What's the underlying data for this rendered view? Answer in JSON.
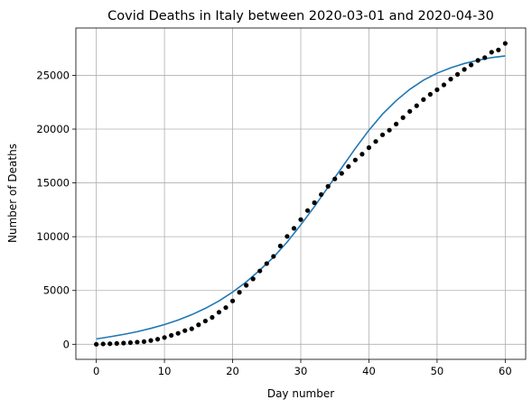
{
  "chart_data": {
    "type": "scatter",
    "title": "Covid Deaths in Italy between 2020-03-01 and 2020-04-30",
    "xlabel": "Day number",
    "ylabel": "Number of Deaths",
    "xlim": [
      -3,
      63
    ],
    "ylim": [
      -1400,
      29400
    ],
    "xticks": [
      0,
      10,
      20,
      30,
      40,
      50,
      60
    ],
    "yticks": [
      0,
      5000,
      10000,
      15000,
      20000,
      25000
    ],
    "grid": true,
    "colors": {
      "points": "#000000",
      "fit": "#1f77b4",
      "grid": "#b0b0b0"
    },
    "series": [
      {
        "kind": "points",
        "x": [
          0,
          1,
          2,
          3,
          4,
          5,
          6,
          7,
          8,
          9,
          10,
          11,
          12,
          13,
          14,
          15,
          16,
          17,
          18,
          19,
          20,
          21,
          22,
          23,
          24,
          25,
          26,
          27,
          28,
          29,
          30,
          31,
          32,
          33,
          34,
          35,
          36,
          37,
          38,
          39,
          40,
          41,
          42,
          43,
          44,
          45,
          46,
          47,
          48,
          49,
          50,
          51,
          52,
          53,
          54,
          55,
          56,
          57,
          58,
          59,
          60
        ],
        "y": [
          0,
          30,
          50,
          80,
          110,
          150,
          200,
          250,
          350,
          470,
          630,
          830,
          1020,
          1270,
          1440,
          1810,
          2160,
          2500,
          2980,
          3410,
          4030,
          4830,
          5480,
          6080,
          6820,
          7500,
          8170,
          9140,
          10030,
          10780,
          11590,
          12430,
          13160,
          13920,
          14680,
          15370,
          15890,
          16520,
          17130,
          17670,
          18280,
          18850,
          19470,
          19900,
          20470,
          21070,
          21650,
          22170,
          22750,
          23230,
          23660,
          24110,
          24650,
          25090,
          25550,
          25970,
          26390,
          26640,
          27150,
          27360,
          27970
        ]
      },
      {
        "kind": "fit-line",
        "x": [
          0,
          2,
          4,
          6,
          8,
          10,
          12,
          14,
          16,
          18,
          20,
          22,
          24,
          26,
          28,
          30,
          32,
          34,
          36,
          38,
          40,
          42,
          44,
          46,
          48,
          50,
          52,
          54,
          56,
          58,
          60
        ],
        "y": [
          500,
          700,
          920,
          1170,
          1480,
          1830,
          2250,
          2750,
          3340,
          4030,
          4850,
          5800,
          6900,
          8100,
          9500,
          11100,
          12800,
          14600,
          16400,
          18200,
          19900,
          21400,
          22650,
          23700,
          24550,
          25200,
          25700,
          26100,
          26400,
          26650,
          26800
        ]
      }
    ]
  }
}
